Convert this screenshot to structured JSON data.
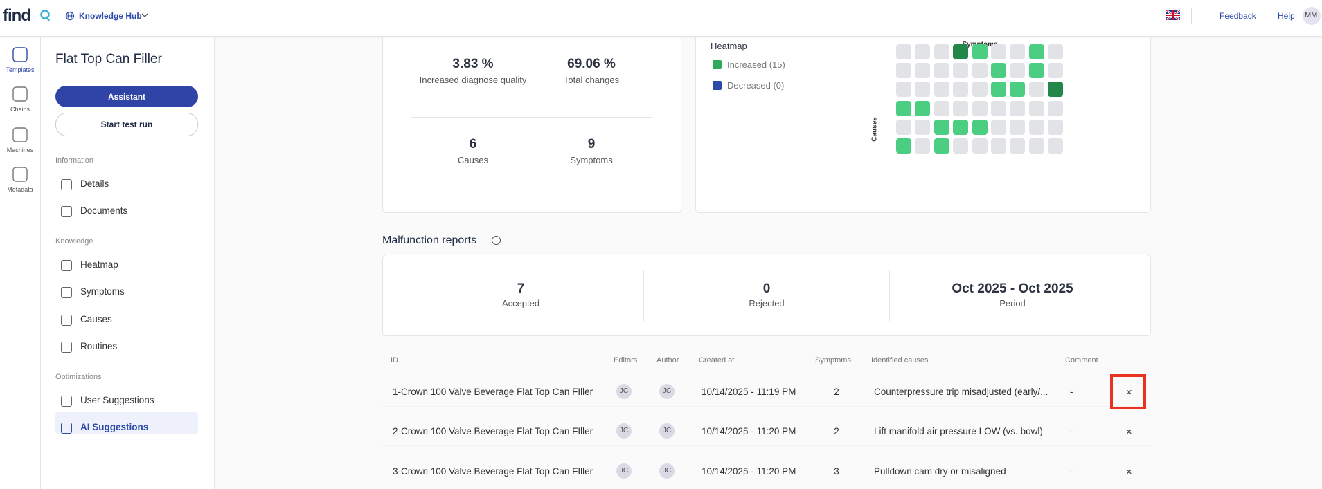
{
  "header": {
    "logo": "find",
    "hub": "Knowledge Hub",
    "feedback": "Feedback",
    "help": "Help",
    "avatar": "MM"
  },
  "rail": [
    "Templates",
    "Chains",
    "Machines",
    "Metadata"
  ],
  "sidebar": {
    "title": "Flat Top Can Filler",
    "assistant": "Assistant",
    "test_run": "Start test run",
    "sections": [
      {
        "label": "Information",
        "items": [
          "Details",
          "Documents"
        ]
      },
      {
        "label": "Knowledge",
        "items": [
          "Heatmap",
          "Symptoms",
          "Causes",
          "Routines"
        ]
      },
      {
        "label": "Optimizations",
        "items": [
          "User Suggestions",
          "AI Suggestions"
        ]
      }
    ]
  },
  "stats": [
    {
      "value": "3.83 %",
      "label": "Increased diagnose quality"
    },
    {
      "value": "69.06 %",
      "label": "Total changes"
    },
    {
      "value": "6",
      "label": "Causes"
    },
    {
      "value": "9",
      "label": "Symptoms"
    }
  ],
  "heatmap": {
    "title": "Heatmap",
    "legend": [
      "Increased (15)",
      "Decreased (0)"
    ],
    "x_label": "Symptoms",
    "y_label": "Causes",
    "cells": [
      [
        0,
        0,
        0,
        2,
        1,
        0,
        0,
        1,
        0
      ],
      [
        0,
        0,
        0,
        0,
        0,
        1,
        0,
        1,
        0
      ],
      [
        0,
        0,
        0,
        0,
        0,
        1,
        1,
        0,
        2
      ],
      [
        1,
        1,
        0,
        0,
        0,
        0,
        0,
        0,
        0
      ],
      [
        0,
        0,
        1,
        1,
        1,
        0,
        0,
        0,
        0
      ],
      [
        1,
        0,
        1,
        0,
        0,
        0,
        0,
        0,
        0
      ]
    ]
  },
  "reports": {
    "title": "Malfunction reports",
    "summary": [
      {
        "value": "7",
        "label": "Accepted"
      },
      {
        "value": "0",
        "label": "Rejected"
      },
      {
        "value": "Oct 2025 - Oct 2025",
        "label": "Period"
      }
    ],
    "table": {
      "columns": [
        "ID",
        "Editors",
        "Author",
        "Created at",
        "Symptoms",
        "Identified causes",
        "Comment"
      ],
      "rows": [
        [
          "1-Crown 100 Valve Beverage Flat Top Can FIller",
          "JC",
          "JC",
          "10/14/2025 - 11:19 PM",
          2,
          "Counterpressure trip misadjusted (early/...",
          "-"
        ],
        [
          "2-Crown 100 Valve Beverage Flat Top Can FIller",
          "JC",
          "JC",
          "10/14/2025 - 11:20 PM",
          2,
          "Lift manifold air pressure LOW (vs. bowl)",
          "-"
        ],
        [
          "3-Crown 100 Valve Beverage Flat Top Can FIller",
          "JC",
          "JC",
          "10/14/2025 - 11:20 PM",
          3,
          "Pulldown cam dry or misaligned",
          "-"
        ]
      ]
    }
  }
}
